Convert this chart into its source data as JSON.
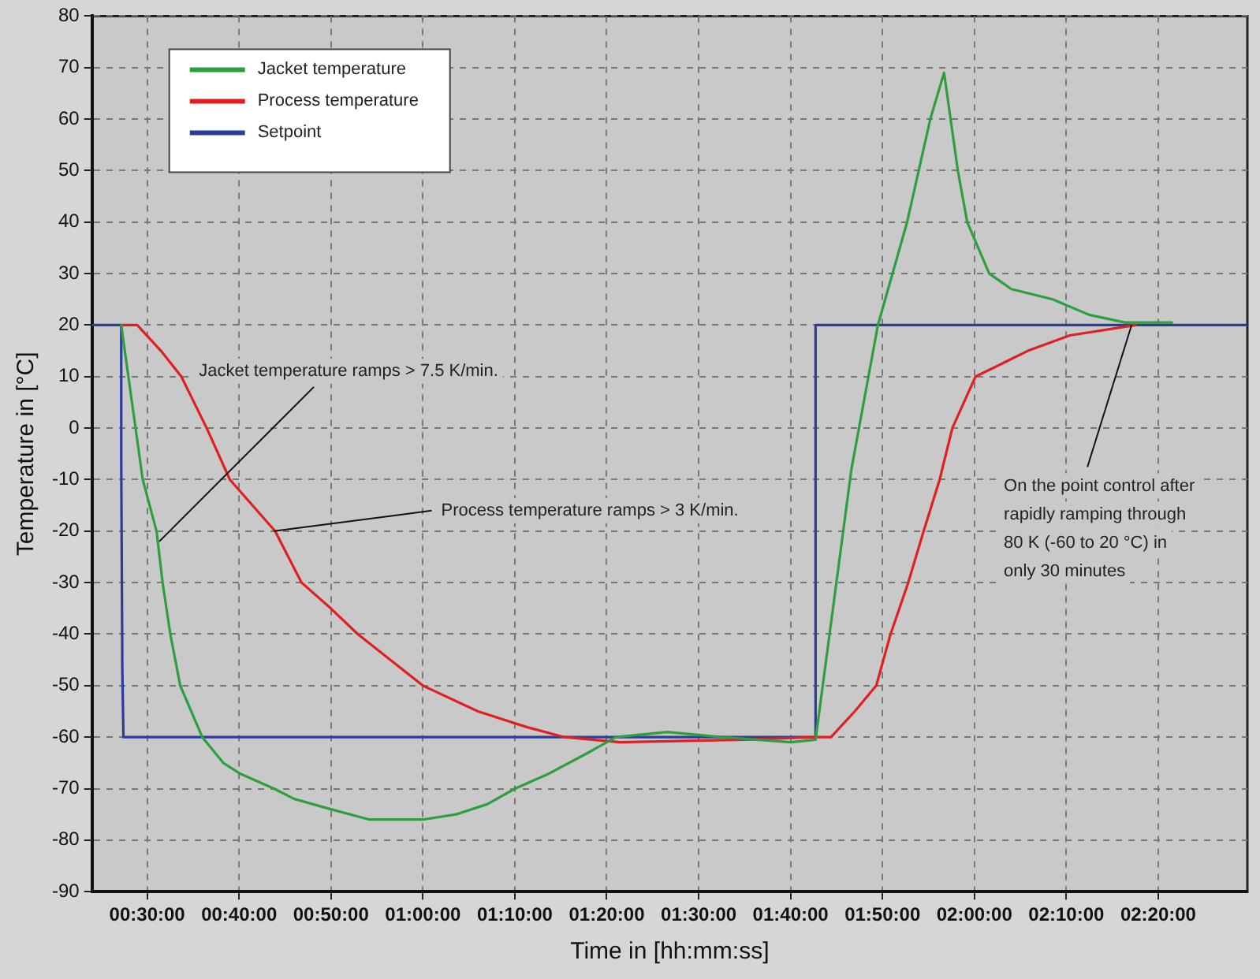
{
  "chart_data": {
    "type": "line",
    "xlabel": "Time in [hh:mm:ss]",
    "ylabel": "Temperature in [°C]",
    "xlim": [
      0.4,
      2.495
    ],
    "ylim": [
      -90,
      80
    ],
    "xticks": [
      {
        "value": 0.5,
        "label": "00:30:00"
      },
      {
        "value": 0.666667,
        "label": "00:40:00"
      },
      {
        "value": 0.833333,
        "label": "00:50:00"
      },
      {
        "value": 1,
        "label": "01:00:00"
      },
      {
        "value": 1.166667,
        "label": "01:10:00"
      },
      {
        "value": 1.333333,
        "label": "01:20:00"
      },
      {
        "value": 1.5,
        "label": "01:30:00"
      },
      {
        "value": 1.666667,
        "label": "01:40:00"
      },
      {
        "value": 1.833333,
        "label": "01:50:00"
      },
      {
        "value": 2,
        "label": "02:00:00"
      },
      {
        "value": 2.166667,
        "label": "02:10:00"
      },
      {
        "value": 2.333333,
        "label": "02:20:00"
      }
    ],
    "yticks": [
      -90,
      -80,
      -70,
      -60,
      -50,
      -40,
      -30,
      -20,
      -10,
      0,
      10,
      20,
      30,
      40,
      50,
      60,
      70,
      80
    ],
    "grid": true,
    "legend": "top left",
    "marker": "none",
    "line_style": "solid",
    "series": [
      {
        "name": "Jacket temperature",
        "color": "#2e9e3e",
        "x": [
          0.453,
          0.492,
          0.517,
          0.528,
          0.542,
          0.56,
          0.6,
          0.638,
          0.667,
          0.73,
          0.767,
          0.833,
          0.903,
          1.0,
          1.06,
          1.117,
          1.167,
          1.23,
          1.3,
          1.35,
          1.443,
          1.542,
          1.667,
          1.712,
          1.777,
          1.825,
          1.878,
          1.92,
          1.945,
          1.97,
          1.987,
          2.027,
          2.067,
          2.142,
          2.208,
          2.273,
          2.358
        ],
        "values": [
          20,
          -10,
          -20,
          -30,
          -40,
          -50,
          -60,
          -65,
          -67,
          -70,
          -72,
          -74,
          -76,
          -76,
          -75,
          -73,
          -70,
          -67,
          -63,
          -60,
          -59,
          -60,
          -61,
          -60.5,
          -8,
          20,
          40,
          60,
          69,
          50,
          40,
          30,
          27,
          25,
          22,
          20.5,
          20.5
        ]
      },
      {
        "name": "Process temperature",
        "color": "#e02020",
        "x": [
          0.453,
          0.482,
          0.525,
          0.562,
          0.608,
          0.65,
          0.732,
          0.78,
          0.833,
          0.882,
          1.0,
          1.1,
          1.187,
          1.257,
          1.358,
          1.583,
          1.712,
          1.74,
          1.783,
          1.822,
          1.848,
          1.88,
          1.908,
          1.937,
          1.96,
          2.002,
          2.097,
          2.173,
          2.293
        ],
        "values": [
          20,
          20,
          15,
          10,
          0,
          -10,
          -20,
          -30,
          -35,
          -40,
          -50,
          -55,
          -58,
          -60,
          -61,
          -60.5,
          -60,
          -60,
          -55,
          -50,
          -40,
          -30,
          -20,
          -10,
          0,
          10,
          15,
          18,
          20
        ]
      },
      {
        "name": "Setpoint",
        "color": "#2b3d9a",
        "x": [
          0.4,
          0.453,
          0.453,
          0.455,
          0.457,
          1.712,
          1.712,
          2.495
        ],
        "values": [
          20,
          20,
          -6,
          -47,
          -60,
          -60,
          20,
          20
        ]
      }
    ],
    "annotations": [
      {
        "text": "Jacket temperature ramps > 7.5 K/min.",
        "x": 0.522,
        "y": -22
      },
      {
        "text": "Process temperature ramps > 3 K/min.",
        "x": 0.73,
        "y": -20
      },
      {
        "text": "On the point control after\nrapidly ramping through\n80 K (-60 to 20 °C) in\nonly 30 minutes",
        "x": 2.285,
        "y": 20
      }
    ]
  }
}
